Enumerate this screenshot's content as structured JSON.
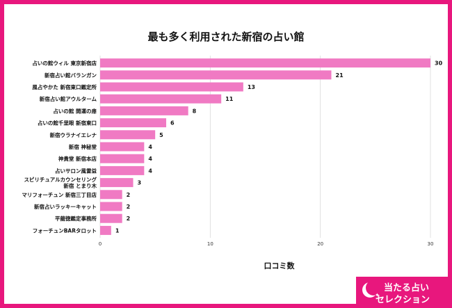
{
  "chart_data": {
    "type": "bar",
    "orientation": "horizontal",
    "title": "最も多く利用された新宿の占い館",
    "xlabel": "口コミ数",
    "ylabel": "",
    "xlim": [
      0,
      30
    ],
    "xticks": [
      0,
      10,
      20,
      30
    ],
    "grid": true,
    "bar_color": "#f07ac3",
    "categories": [
      [
        "占いの館ウィル 東京新宿店"
      ],
      [
        "新宿占い館バランガン"
      ],
      [
        "風占やかた 新宿東口鑑定所"
      ],
      [
        "新宿占い館アウルターム"
      ],
      [
        "占いの館 開運の扉"
      ],
      [
        "占いの館千里眼 新宿東口"
      ],
      [
        "新宿ウラナイエレナ"
      ],
      [
        "新宿 神秘堂"
      ],
      [
        "神貴堂 新宿本店"
      ],
      [
        "占いサロン風雷益"
      ],
      [
        "スピリチュアルカウンセリング",
        "新宿 とまり木"
      ],
      [
        "マリフォーチュン 新宿三丁目店"
      ],
      [
        "新宿占いラッキーキャット"
      ],
      [
        "平龍徳鑑定事務所"
      ],
      [
        "フォーチュンBARタロット"
      ]
    ],
    "values": [
      30,
      21,
      13,
      11,
      8,
      6,
      5,
      4,
      4,
      4,
      3,
      2,
      2,
      2,
      1
    ]
  },
  "logo": {
    "line1": "当たる占い",
    "line2": "セレクション"
  }
}
